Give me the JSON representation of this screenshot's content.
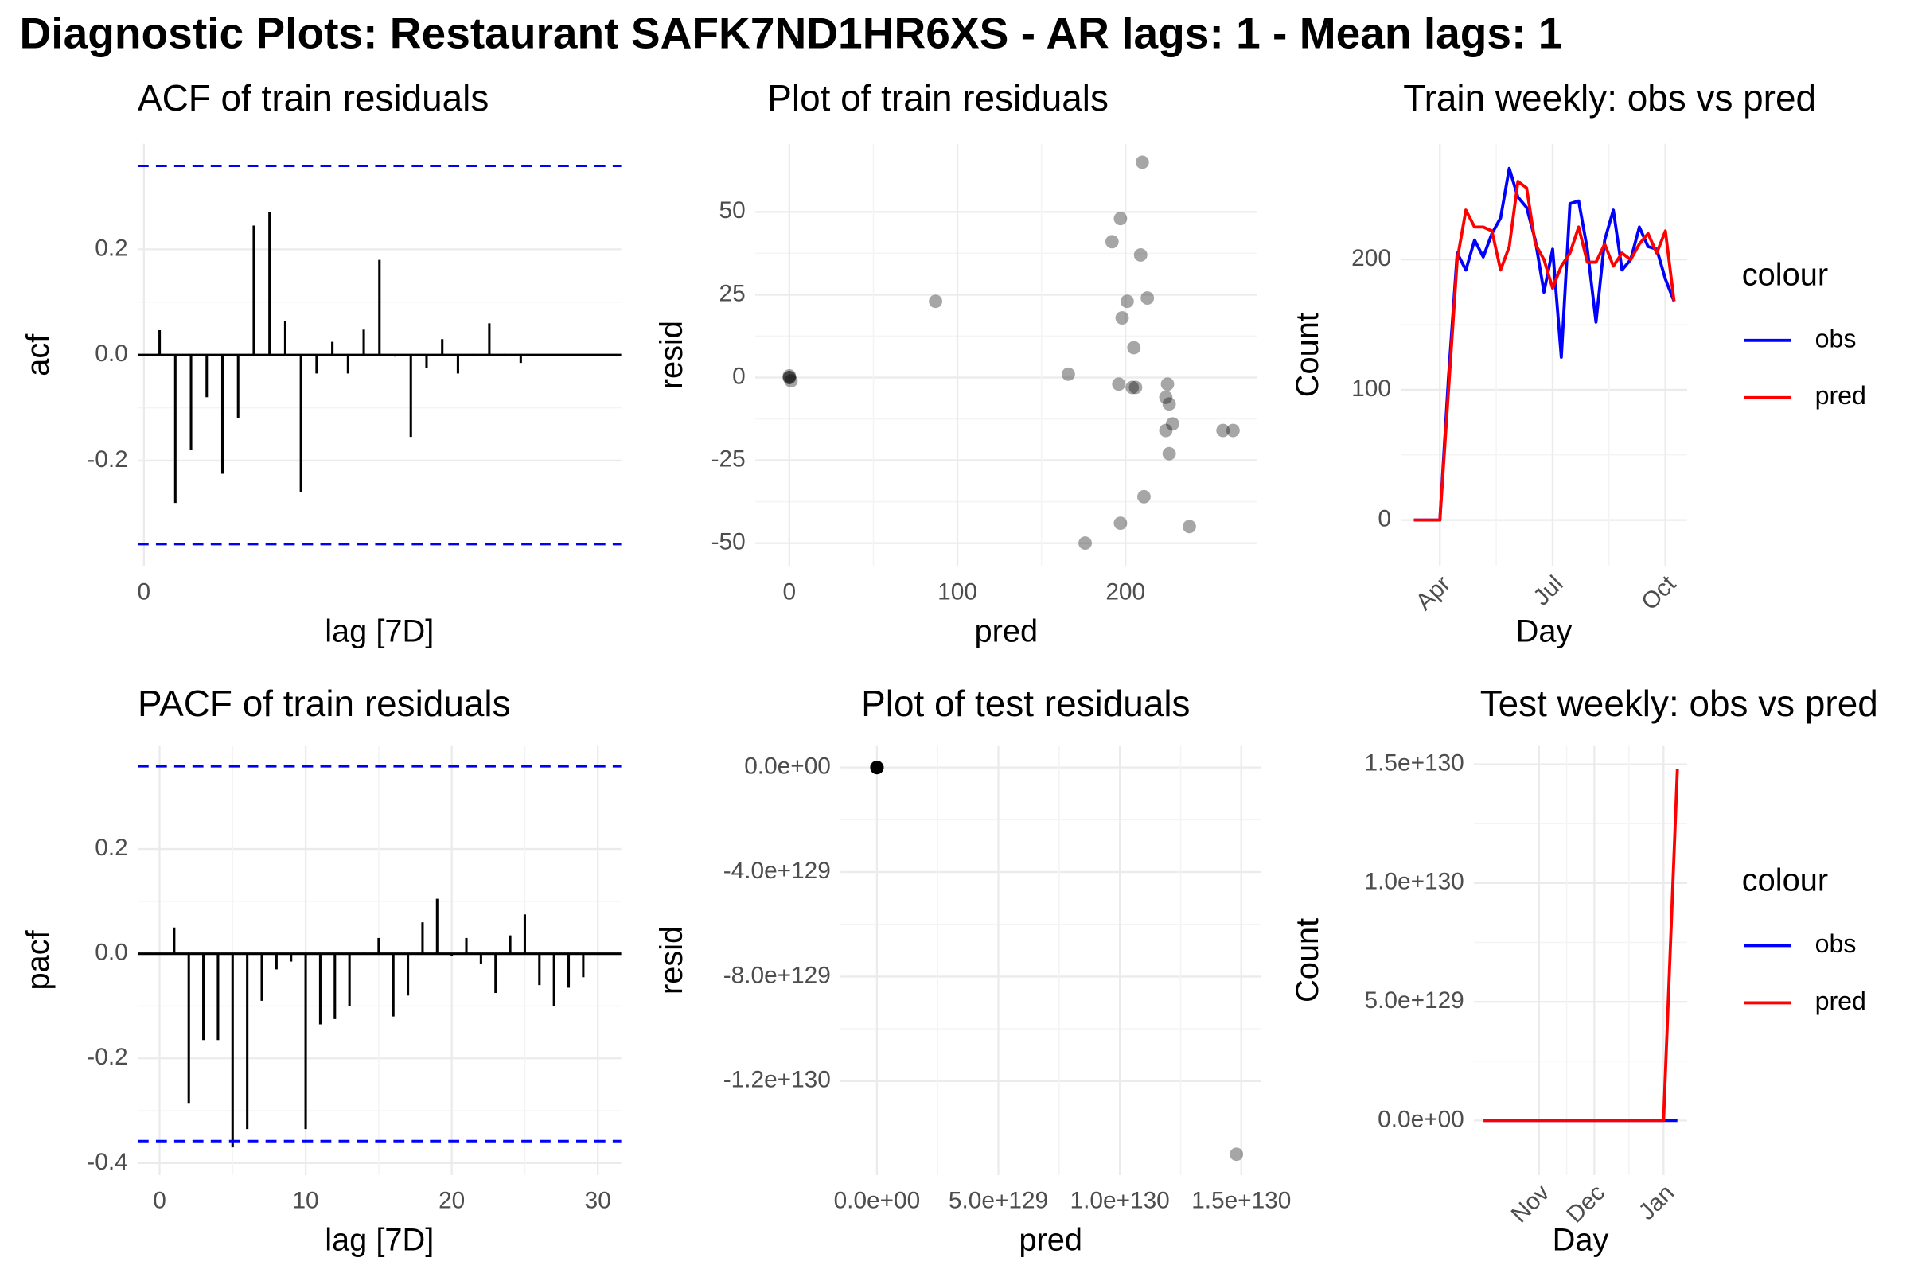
{
  "title": "Diagnostic Plots: Restaurant SAFK7ND1HR6XS - AR lags: 1 - Mean lags: 1",
  "chart_data": [
    {
      "type": "stem",
      "title": "ACF of train residuals",
      "xlabel": "lag [7D]",
      "ylabel": "acf",
      "x": [
        1,
        2,
        3,
        4,
        5,
        6,
        7,
        8,
        9,
        10,
        11,
        12,
        13,
        14,
        15,
        16,
        17,
        18,
        19,
        20,
        21,
        22,
        23,
        24
      ],
      "values": [
        0.047,
        -0.28,
        -0.18,
        -0.08,
        -0.225,
        -0.12,
        0.245,
        0.27,
        0.065,
        -0.26,
        -0.035,
        0.025,
        -0.035,
        0.048,
        0.18,
        -0.003,
        -0.155,
        -0.025,
        0.03,
        -0.035,
        0.002,
        0.06,
        0.002,
        -0.015
      ],
      "color": "black",
      "hlines": [
        0.358,
        -0.358
      ],
      "hline_color": "blue",
      "xlim": [
        -0.4,
        30.4
      ],
      "xticks": [
        0
      ],
      "ylim": [
        -0.4,
        0.4
      ],
      "yticks": [
        -0.2,
        {
          "value": 0,
          "label": "0.0"
        },
        0.2
      ],
      "grid": true
    },
    {
      "type": "scatter",
      "title": "Plot of train residuals",
      "xlabel": "pred",
      "ylabel": "resid",
      "x": [
        0,
        0,
        1,
        0,
        87,
        210,
        197,
        192,
        209,
        201,
        213,
        198,
        205,
        166,
        196,
        204,
        206,
        225,
        224,
        226,
        228,
        224,
        258,
        264,
        226,
        211,
        197,
        176,
        238
      ],
      "values": [
        0,
        0,
        -1,
        0.5,
        23,
        65,
        48,
        41,
        37,
        23,
        24,
        18,
        9,
        1,
        -2,
        -3,
        -3,
        -2,
        -6,
        -8,
        -14,
        -16,
        -16,
        -16,
        -23,
        -36,
        -44,
        -50,
        -45
      ],
      "color": "black",
      "xlim": [
        -20.3,
        278.3
      ],
      "xticks": [
        0,
        100,
        200
      ],
      "ylim": [
        -57,
        70.6
      ],
      "yticks": [
        -50,
        -25,
        0,
        25,
        50
      ],
      "grid": true
    },
    {
      "type": "line",
      "title": "Train weekly: obs vs pred",
      "xlabel": "Day",
      "ylabel": "Count",
      "categories": [
        null,
        null,
        null,
        "Apr",
        null,
        null,
        null,
        null,
        null,
        null,
        null,
        null,
        null,
        null,
        null,
        null,
        "Jul",
        null,
        null,
        null,
        null,
        null,
        null,
        null,
        null,
        null,
        null,
        null,
        null,
        "Oct",
        null
      ],
      "series": [
        {
          "name": "obs",
          "color": "blue",
          "values": [
            0,
            0,
            0,
            0,
            110,
            205,
            192,
            215,
            202,
            220,
            232,
            270,
            248,
            240,
            215,
            175,
            208,
            125,
            243,
            245,
            208,
            152,
            215,
            238,
            192,
            200,
            225,
            210,
            208,
            185,
            168
          ]
        },
        {
          "name": "pred",
          "color": "red",
          "values": [
            0,
            0,
            0,
            0,
            100,
            200,
            238,
            225,
            225,
            222,
            192,
            210,
            260,
            255,
            212,
            200,
            178,
            195,
            205,
            225,
            198,
            198,
            212,
            195,
            205,
            200,
            212,
            220,
            205,
            222,
            168
          ]
        }
      ],
      "legend_title": "colour",
      "legend": "right",
      "ylim": [
        -35.5,
        289
      ],
      "yticks": [
        0,
        100,
        200
      ],
      "grid": true
    },
    {
      "type": "stem",
      "title": "PACF of train residuals",
      "xlabel": "lag [7D]",
      "ylabel": "pacf",
      "x": [
        1,
        2,
        3,
        4,
        5,
        6,
        7,
        8,
        9,
        10,
        11,
        12,
        13,
        14,
        15,
        16,
        17,
        18,
        19,
        20,
        21,
        22,
        23,
        24,
        25,
        26,
        27,
        28,
        29
      ],
      "values": [
        0.05,
        -0.285,
        -0.165,
        -0.165,
        -0.37,
        -0.335,
        -0.09,
        -0.03,
        -0.015,
        -0.335,
        -0.135,
        -0.125,
        -0.1,
        0.002,
        0.03,
        -0.12,
        -0.08,
        0.06,
        0.105,
        -0.005,
        0.03,
        -0.02,
        -0.075,
        0.035,
        0.075,
        -0.06,
        -0.1,
        -0.065,
        -0.045
      ],
      "color": "black",
      "hlines": [
        0.358,
        -0.358
      ],
      "hline_color": "blue",
      "xlim": [
        -1.5,
        31.6
      ],
      "xticks": [
        0,
        10,
        20,
        30
      ],
      "ylim": [
        -0.423,
        0.398
      ],
      "yticks": [
        -0.4,
        -0.2,
        {
          "value": 0,
          "label": "0.0"
        },
        0.2
      ],
      "grid": true
    },
    {
      "type": "scatter",
      "title": "Plot of test residuals",
      "xlabel": "pred",
      "ylabel": "resid",
      "x": [
        0,
        0,
        0,
        0,
        0,
        0,
        0,
        0,
        0,
        0,
        0,
        0,
        0,
        1.48e+130
      ],
      "values": [
        0,
        0,
        0,
        0,
        0,
        0,
        0,
        0,
        0,
        0,
        0,
        0,
        0,
        -1.48e+130
      ],
      "color": "black",
      "xlim": [
        -1.5e+129,
        1.58e+130
      ],
      "xticks": [
        {
          "value": 0,
          "label": "0.0e+00"
        },
        {
          "value": 5e+129,
          "label": "5.0e+129"
        },
        {
          "value": 1e+130,
          "label": "1.0e+130"
        },
        {
          "value": 1.5e+130,
          "label": "1.5e+130"
        }
      ],
      "ylim": [
        -1.56e+130,
        8.5e+128
      ],
      "yticks": [
        {
          "value": -1.2e+130,
          "label": "-1.2e+130"
        },
        {
          "value": -8e+129,
          "label": "-8.0e+129"
        },
        {
          "value": -4e+129,
          "label": "-4.0e+129"
        },
        {
          "value": 0,
          "label": "0.0e+00"
        }
      ],
      "grid": true
    },
    {
      "type": "line",
      "title": "Test weekly: obs vs pred",
      "xlabel": "Day",
      "ylabel": "Count",
      "categories": [
        null,
        null,
        null,
        null,
        "Nov",
        null,
        null,
        null,
        "Dec",
        null,
        null,
        null,
        null,
        "Jan",
        null
      ],
      "series": [
        {
          "name": "obs",
          "color": "blue",
          "values": [
            0,
            0,
            0,
            0,
            0,
            0,
            0,
            0,
            0,
            0,
            0,
            0,
            0,
            0,
            0
          ]
        },
        {
          "name": "pred",
          "color": "red",
          "values": [
            0,
            0,
            0,
            0,
            0,
            0,
            0,
            0,
            0,
            0,
            0,
            0,
            0,
            0,
            1.48e+130
          ]
        }
      ],
      "legend_title": "colour",
      "legend": "right",
      "ylim": [
        -2.3e+129,
        1.58e+130
      ],
      "yticks": [
        {
          "value": 0,
          "label": "0.0e+00"
        },
        {
          "value": 5e+129,
          "label": "5.0e+129"
        },
        {
          "value": 1e+130,
          "label": "1.0e+130"
        },
        {
          "value": 1.5e+130,
          "label": "1.5e+130"
        }
      ],
      "grid": true
    }
  ]
}
